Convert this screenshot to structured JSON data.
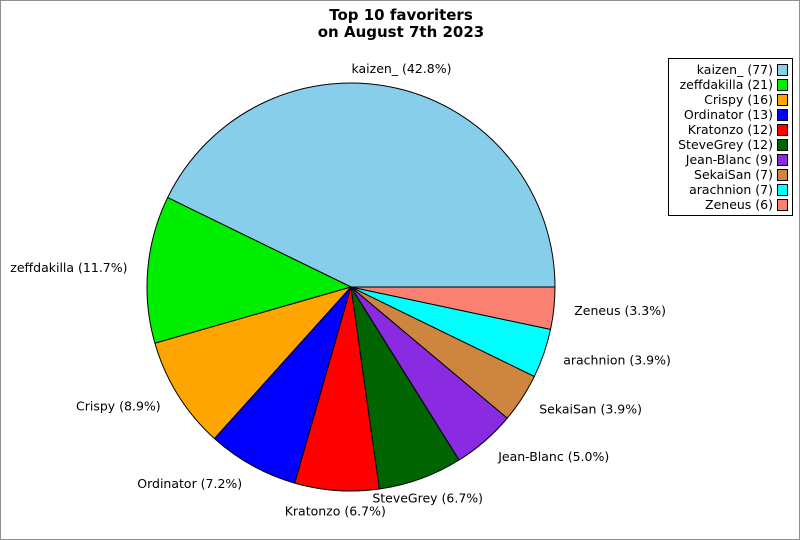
{
  "title": {
    "line1": "Top 10 favoriters",
    "line2": "on August 7th 2023"
  },
  "chart_data": {
    "type": "pie",
    "title": "Top 10 favoriters on August 7th 2023",
    "total": 180,
    "start_angle_deg": 0,
    "direction": "counterclockwise",
    "legend_position": "upper right",
    "grid": false,
    "slices": [
      {
        "name": "kaizen_",
        "value": 77,
        "pct": 42.8,
        "label": "kaizen_ (42.8%)",
        "legend_label": "kaizen_ (77)",
        "color": "#87CEEB"
      },
      {
        "name": "zeffdakilla",
        "value": 21,
        "pct": 11.7,
        "label": "zeffdakilla (11.7%)",
        "legend_label": "zeffdakilla (21)",
        "color": "#00EE00"
      },
      {
        "name": "Crispy",
        "value": 16,
        "pct": 8.9,
        "label": "Crispy (8.9%)",
        "legend_label": "Crispy (16)",
        "color": "#FFA500"
      },
      {
        "name": "Ordinator",
        "value": 13,
        "pct": 7.2,
        "label": "Ordinator (7.2%)",
        "legend_label": "Ordinator (13)",
        "color": "#0000FF"
      },
      {
        "name": "Kratonzo",
        "value": 12,
        "pct": 6.7,
        "label": "Kratonzo (6.7%)",
        "legend_label": "Kratonzo (12)",
        "color": "#FF0000"
      },
      {
        "name": "SteveGrey",
        "value": 12,
        "pct": 6.7,
        "label": "SteveGrey (6.7%)",
        "legend_label": "SteveGrey (12)",
        "color": "#006400"
      },
      {
        "name": "Jean-Blanc",
        "value": 9,
        "pct": 5.0,
        "label": "Jean-Blanc (5.0%)",
        "legend_label": "Jean-Blanc (9)",
        "color": "#8A2BE2"
      },
      {
        "name": "SekaiSan",
        "value": 7,
        "pct": 3.9,
        "label": "SekaiSan (3.9%)",
        "legend_label": "SekaiSan (7)",
        "color": "#CD853F"
      },
      {
        "name": "arachnion",
        "value": 7,
        "pct": 3.9,
        "label": "arachnion (3.9%)",
        "legend_label": "arachnion (7)",
        "color": "#00FFFF"
      },
      {
        "name": "Zeneus",
        "value": 6,
        "pct": 3.3,
        "label": "Zeneus (3.3%)",
        "legend_label": "Zeneus (6)",
        "color": "#FA8072"
      }
    ]
  }
}
